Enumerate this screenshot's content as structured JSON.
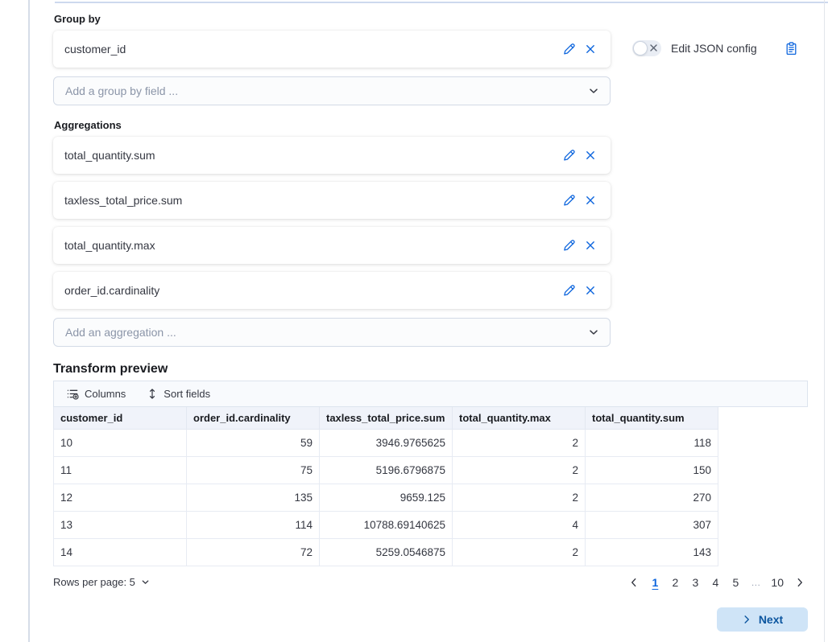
{
  "group_by": {
    "label": "Group by",
    "items": [
      {
        "label": "customer_id"
      }
    ],
    "add_placeholder": "Add a group by field ..."
  },
  "json_config": {
    "toggle_label": "Edit JSON config",
    "toggle_state": "off"
  },
  "aggregations": {
    "label": "Aggregations",
    "items": [
      {
        "label": "total_quantity.sum"
      },
      {
        "label": "taxless_total_price.sum"
      },
      {
        "label": "total_quantity.max"
      },
      {
        "label": "order_id.cardinality"
      }
    ],
    "add_placeholder": "Add an aggregation ..."
  },
  "preview": {
    "title": "Transform preview",
    "toolbar": {
      "columns_label": "Columns",
      "sort_label": "Sort fields"
    },
    "table": {
      "columns": [
        "customer_id",
        "order_id.cardinality",
        "taxless_total_price.sum",
        "total_quantity.max",
        "total_quantity.sum"
      ],
      "rows": [
        [
          "10",
          "59",
          "3946.9765625",
          "2",
          "118"
        ],
        [
          "11",
          "75",
          "5196.6796875",
          "2",
          "150"
        ],
        [
          "12",
          "135",
          "9659.125",
          "2",
          "270"
        ],
        [
          "13",
          "114",
          "10788.69140625",
          "4",
          "307"
        ],
        [
          "14",
          "72",
          "5259.0546875",
          "2",
          "143"
        ]
      ]
    },
    "pagination": {
      "rows_per_page_label": "Rows per page: 5",
      "pages": [
        "1",
        "2",
        "3",
        "4",
        "5",
        "…",
        "10"
      ],
      "active_page": "1"
    }
  },
  "footer": {
    "next_label": "Next"
  },
  "icons": {
    "pencil": "pencil-icon",
    "cross": "cross-icon",
    "chevron_down": "chevron-down-icon",
    "columns": "columns-list-icon",
    "sort": "sort-arrows-icon",
    "copy": "copy-clipboard-icon",
    "chevron_left": "chevron-left-icon",
    "chevron_right": "chevron-right-icon"
  },
  "colors": {
    "accent_blue": "#0b64dd",
    "next_button_bg": "#cfe4f7",
    "next_button_text": "#0b559f",
    "header_bg": "#f0f3fa",
    "border": "#d3dae6"
  }
}
